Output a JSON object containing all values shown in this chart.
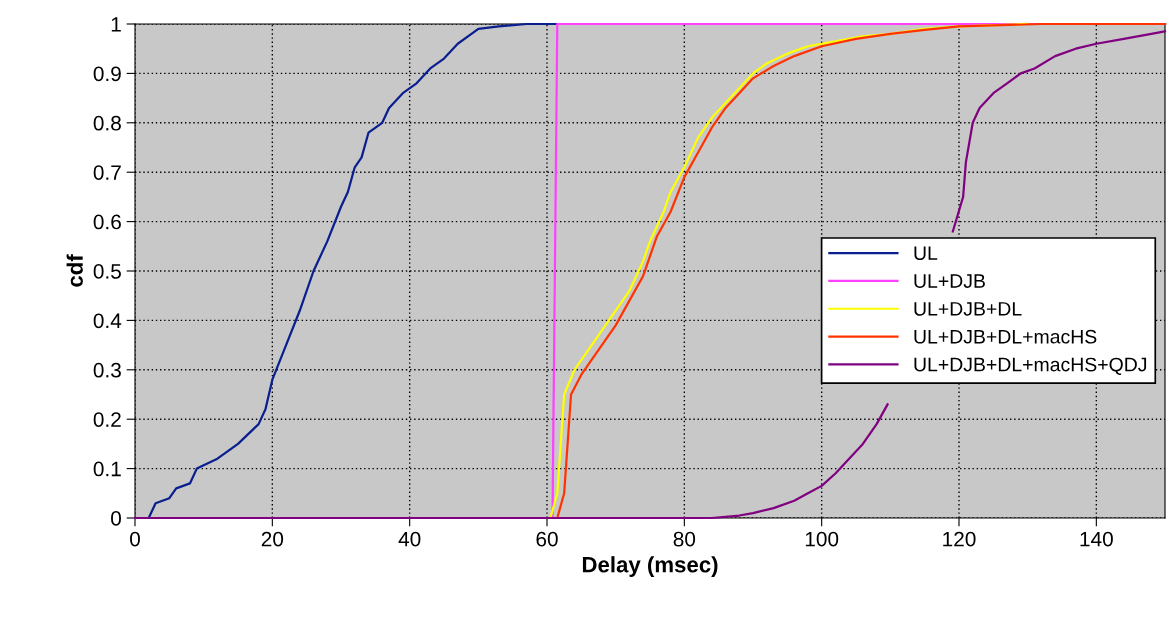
{
  "chart_data": {
    "type": "line",
    "xlabel": "Delay (msec)",
    "ylabel": "cdf",
    "xlim": [
      0,
      150
    ],
    "xticks": [
      0,
      20,
      40,
      60,
      80,
      100,
      120,
      140
    ],
    "ylim": [
      0,
      1
    ],
    "yticks": [
      0,
      0.1,
      0.2,
      0.3,
      0.4,
      0.5,
      0.6,
      0.7,
      0.8,
      0.9,
      1
    ],
    "grid": true,
    "legend": "right",
    "marker": "none",
    "line_style": "solid",
    "series": [
      {
        "name": "UL",
        "color": "#0a1f8f",
        "x": [
          0,
          2,
          3,
          5,
          6,
          8,
          9,
          12,
          15,
          18,
          19,
          20,
          22,
          24,
          26,
          28,
          30,
          31,
          32,
          33,
          34,
          36,
          37,
          39,
          41,
          43,
          45,
          47,
          49,
          50,
          53,
          57,
          150
        ],
        "values": [
          0,
          0,
          0.03,
          0.04,
          0.06,
          0.07,
          0.1,
          0.12,
          0.15,
          0.19,
          0.22,
          0.28,
          0.35,
          0.42,
          0.5,
          0.56,
          0.63,
          0.66,
          0.71,
          0.73,
          0.78,
          0.8,
          0.83,
          0.86,
          0.88,
          0.91,
          0.93,
          0.96,
          0.98,
          0.99,
          0.995,
          1,
          1
        ]
      },
      {
        "name": "UL+DJB",
        "color": "#ff40ff",
        "x": [
          0,
          60.8,
          61.5,
          150
        ],
        "values": [
          0,
          0,
          1,
          1
        ]
      },
      {
        "name": "UL+DJB+DL",
        "color": "#ffff00",
        "x": [
          0,
          60.5,
          61.5,
          62.5,
          64,
          66,
          68,
          70,
          72,
          74,
          75,
          77,
          78,
          80,
          82,
          84,
          86,
          88,
          90,
          92,
          95,
          98,
          102,
          106,
          110,
          115,
          120,
          130
        ],
        "values": [
          0,
          0,
          0.05,
          0.25,
          0.3,
          0.34,
          0.38,
          0.42,
          0.46,
          0.52,
          0.56,
          0.62,
          0.66,
          0.71,
          0.77,
          0.81,
          0.84,
          0.87,
          0.9,
          0.92,
          0.94,
          0.955,
          0.965,
          0.975,
          0.98,
          0.99,
          0.995,
          1
        ]
      },
      {
        "name": "UL+DJB+DL+macHS",
        "color": "#ff3300",
        "x": [
          0,
          61.5,
          62.5,
          63.5,
          65,
          67,
          70,
          72,
          74,
          76,
          78,
          80,
          82,
          84,
          86,
          88,
          90,
          93,
          96,
          100,
          105,
          110,
          115,
          120,
          132,
          150
        ],
        "values": [
          0,
          0,
          0.05,
          0.25,
          0.29,
          0.33,
          0.39,
          0.44,
          0.49,
          0.57,
          0.62,
          0.69,
          0.74,
          0.79,
          0.83,
          0.86,
          0.89,
          0.915,
          0.935,
          0.955,
          0.97,
          0.98,
          0.988,
          0.995,
          1,
          1
        ]
      },
      {
        "name": "UL+DJB+DL+macHS+QDJ",
        "color": "#800080",
        "x": [
          0,
          84,
          88,
          90,
          93,
          96,
          98,
          100,
          102,
          104,
          106,
          108,
          109.6,
          114,
          119.1,
          120.6,
          121,
          122,
          123,
          125,
          127,
          129,
          131,
          134,
          137,
          140,
          144,
          148,
          150
        ],
        "values": [
          0,
          0,
          0.005,
          0.01,
          0.02,
          0.035,
          0.05,
          0.065,
          0.09,
          0.12,
          0.15,
          0.19,
          0.23,
          null,
          0.58,
          0.65,
          0.72,
          0.8,
          0.83,
          0.86,
          0.88,
          0.9,
          0.91,
          0.935,
          0.95,
          0.96,
          0.97,
          0.98,
          0.985
        ]
      }
    ]
  }
}
